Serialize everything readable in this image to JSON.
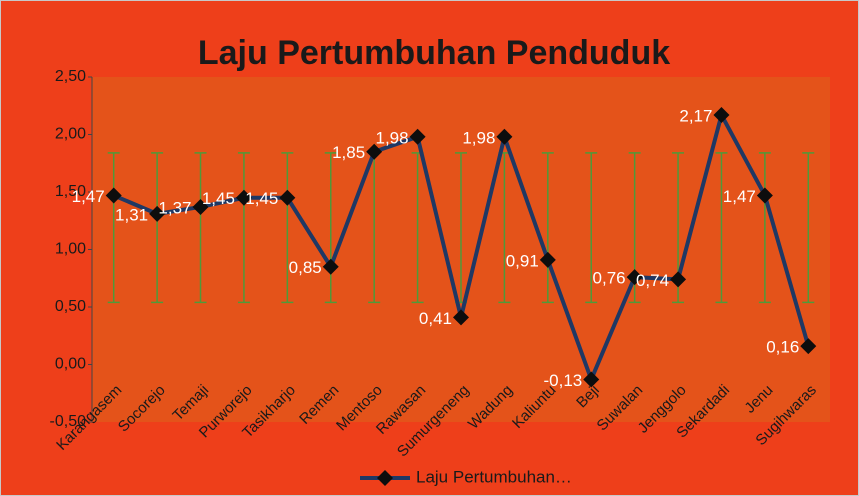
{
  "chart_data": {
    "type": "line",
    "title": "Laju Pertumbuhan Penduduk",
    "categories": [
      "Karangasem",
      "Socorejo",
      "Temaji",
      "Purworejo",
      "Tasikharjo",
      "Remen",
      "Mentoso",
      "Rawasan",
      "Sumurgeneng",
      "Wadung",
      "Kaliuntu",
      "Beji",
      "Suwalan",
      "Jenggolo",
      "Sekardadi",
      "Jenu",
      "Sugihwaras"
    ],
    "series": [
      {
        "name": "Laju Pertumbuhan…",
        "color": "#1f3864",
        "values": [
          1.47,
          1.31,
          1.37,
          1.45,
          1.45,
          0.85,
          1.85,
          1.98,
          0.41,
          1.98,
          0.91,
          -0.13,
          0.76,
          0.74,
          2.17,
          1.47,
          0.16
        ],
        "value_labels": [
          "1,47",
          "1,31",
          "1,37",
          "1,45",
          "1,45",
          "0,85",
          "1,85",
          "1,98",
          "0,41",
          "1,98",
          "0,91",
          "-0,13",
          "0,76",
          "0,74",
          "2,17",
          "1,47",
          "0,16"
        ]
      }
    ],
    "error_bar_center": 1.19,
    "error_bar": 0.65,
    "error_bar_color": "#4e9a3a",
    "ylim": [
      -0.5,
      2.5
    ],
    "yticks": [
      {
        "value": -0.5,
        "label": "-0,50"
      },
      {
        "value": 0,
        "label": "0,00"
      },
      {
        "value": 0.5,
        "label": "0,50"
      },
      {
        "value": 1,
        "label": "1,00"
      },
      {
        "value": 1.5,
        "label": "1,50"
      },
      {
        "value": 2,
        "label": "2,00"
      },
      {
        "value": 2.5,
        "label": "2,50"
      }
    ],
    "legend": "bottom"
  }
}
